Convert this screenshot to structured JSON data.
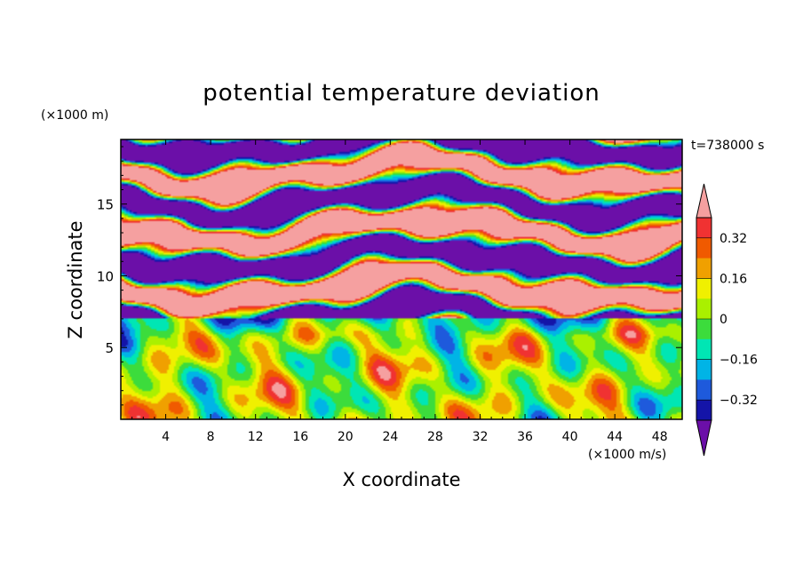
{
  "chart_data": {
    "type": "heatmap",
    "title": "potential temperature deviation",
    "xlabel": "X coordinate",
    "ylabel": "Z coordinate",
    "x_unit": "(×1000 m/s)",
    "y_unit": "(×1000 m)",
    "time_label": "t=738000 s",
    "xlim": [
      0,
      50
    ],
    "ylim": [
      0,
      19.5
    ],
    "x_ticks": [
      4,
      8,
      12,
      16,
      20,
      24,
      28,
      32,
      36,
      40,
      44,
      48
    ],
    "y_ticks": [
      5,
      10,
      15
    ],
    "colorbar": {
      "levels": [
        -0.4,
        -0.32,
        -0.24,
        -0.16,
        -0.08,
        0,
        0.08,
        0.16,
        0.24,
        0.32,
        0.4
      ],
      "colors": [
        "#6b0fa8",
        "#1414a8",
        "#1e5adc",
        "#00b4e6",
        "#00e6b4",
        "#3cdc3c",
        "#aaf000",
        "#f0f000",
        "#f0a000",
        "#f05a00",
        "#f03232",
        "#f5a0a0"
      ],
      "tick_labels": [
        "0.32",
        "0.16",
        "0",
        "-0.16",
        "-0.32"
      ],
      "tick_values": [
        0.32,
        0.16,
        0,
        -0.16,
        -0.32
      ],
      "over_color": "#f5a0a0",
      "under_color": "#6b0fa8"
    }
  }
}
